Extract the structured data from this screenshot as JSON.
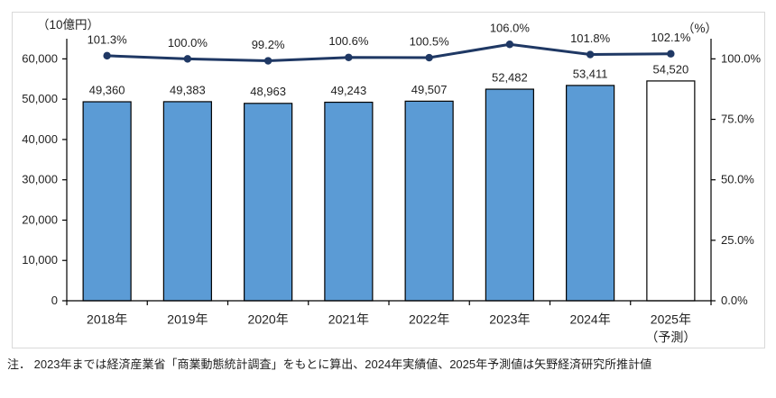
{
  "chart": {
    "left_axis_unit": "（10億円）",
    "right_axis_unit": "（%）",
    "note": "注． 2023年までは経済産業省「商業動態統計調査」をもとに算出、2024年実績値、2025年予測値は矢野経済研究所推計値"
  },
  "chart_data": {
    "type": "bar+line combo",
    "title": "",
    "categories": [
      "2018年",
      "2019年",
      "2020年",
      "2021年",
      "2022年",
      "2023年",
      "2024年",
      "2025年"
    ],
    "category_sublabels": [
      "",
      "",
      "",
      "",
      "",
      "",
      "",
      "（予測）"
    ],
    "series": [
      {
        "name": "市場規模",
        "type": "bar",
        "axis": "left",
        "values": [
          49360,
          49383,
          48963,
          49243,
          49507,
          52482,
          53411,
          54520
        ],
        "labels": [
          "49,360",
          "49,383",
          "48,963",
          "49,243",
          "49,507",
          "52,482",
          "53,411",
          "54,520"
        ],
        "forecast_index": 7
      },
      {
        "name": "前年比",
        "type": "line",
        "axis": "right",
        "values": [
          101.3,
          100.0,
          99.2,
          100.6,
          100.5,
          106.0,
          101.8,
          102.1
        ],
        "labels": [
          "101.3%",
          "100.0%",
          "99.2%",
          "100.6%",
          "100.5%",
          "106.0%",
          "101.8%",
          "102.1%"
        ]
      }
    ],
    "axes": {
      "left": {
        "unit": "（10億円）",
        "min": 0,
        "max": 65000,
        "tick_step": 10000,
        "tick_labels": [
          "0",
          "10,000",
          "20,000",
          "30,000",
          "40,000",
          "50,000",
          "60,000"
        ]
      },
      "right": {
        "unit": "（%）",
        "min": 0,
        "max": 108.33,
        "tick_step": 25,
        "tick_labels": [
          "0.0%",
          "25.0%",
          "50.0%",
          "75.0%",
          "100.0%"
        ]
      }
    },
    "grid": false,
    "legend": "none",
    "colors": {
      "bar_fill": "#5B9BD5",
      "bar_border": "#000000",
      "forecast_bar_fill": "#FFFFFF",
      "line": "#1F3864",
      "axis_line": "#000000",
      "frame_border": "#D9D9D9",
      "label_text": "#1F1F1F"
    }
  }
}
